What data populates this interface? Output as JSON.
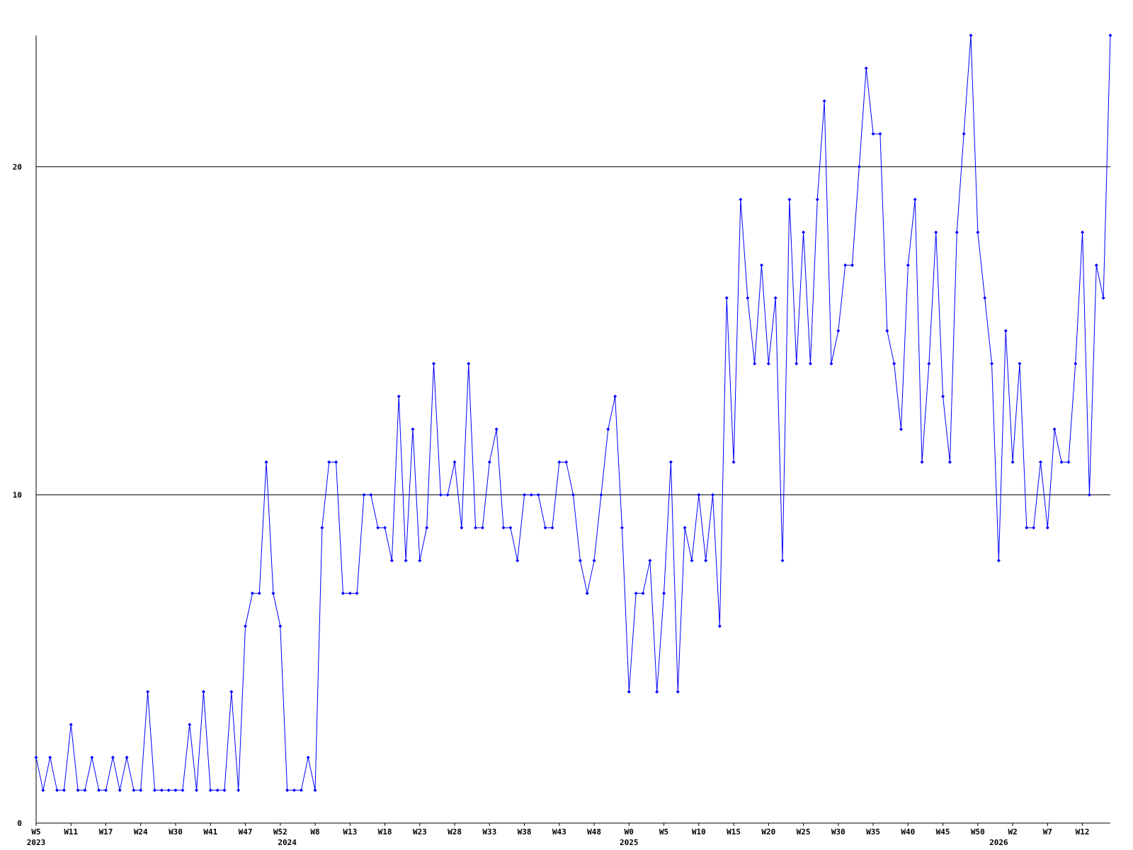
{
  "chart_data": {
    "type": "line",
    "categories": [
      "W5",
      null,
      null,
      null,
      null,
      "W11",
      null,
      null,
      null,
      null,
      "W17",
      null,
      null,
      null,
      null,
      "W24",
      null,
      null,
      null,
      null,
      "W30",
      null,
      null,
      null,
      null,
      "W41",
      null,
      null,
      null,
      null,
      "W47",
      null,
      null,
      null,
      null,
      "W52",
      null,
      null,
      null,
      null,
      "W8",
      null,
      null,
      null,
      null,
      "W13",
      null,
      null,
      null,
      null,
      "W18",
      null,
      null,
      null,
      null,
      "W23",
      null,
      null,
      null,
      null,
      "W28",
      null,
      null,
      null,
      null,
      "W33",
      null,
      null,
      null,
      null,
      "W38",
      null,
      null,
      null,
      null,
      "W43",
      null,
      null,
      null,
      null,
      "W48",
      null,
      null,
      null,
      null,
      "W0",
      null,
      null,
      null,
      null,
      "W5",
      null,
      null,
      null,
      null,
      "W10",
      null,
      null,
      null,
      null,
      "W15",
      null,
      null,
      null,
      null,
      "W20",
      null,
      null,
      null,
      null,
      "W25",
      null,
      null,
      null,
      null,
      "W30",
      null,
      null,
      null,
      null,
      "W35",
      null,
      null,
      null,
      null,
      "W40",
      null,
      null,
      null,
      null,
      "W45",
      null,
      null,
      null,
      null,
      "W50",
      null,
      null,
      null,
      null,
      "W2",
      null,
      null,
      null,
      null,
      "W7",
      null,
      null,
      null,
      null,
      "W12",
      null,
      null,
      null,
      null
    ],
    "year_groups": [
      {
        "label": "2023",
        "start": 0
      },
      {
        "label": "2024",
        "start": 36
      },
      {
        "label": "2025",
        "start": 85
      },
      {
        "label": "2026",
        "start": 138
      }
    ],
    "series": [
      {
        "color": "#0000ff",
        "values": [
          2,
          1,
          2,
          1,
          1,
          3,
          1,
          1,
          2,
          1,
          1,
          2,
          1,
          2,
          1,
          1,
          4,
          1,
          1,
          1,
          1,
          1,
          3,
          1,
          4,
          1,
          1,
          1,
          4,
          1,
          6,
          7,
          7,
          11,
          7,
          6,
          1,
          1,
          1,
          2,
          1,
          9,
          11,
          11,
          7,
          7,
          7,
          10,
          10,
          9,
          9,
          8,
          13,
          8,
          12,
          8,
          9,
          14,
          10,
          10,
          11,
          9,
          14,
          9,
          9,
          11,
          12,
          9,
          9,
          8,
          10,
          10,
          10,
          9,
          9,
          11,
          11,
          10,
          8,
          7,
          8,
          10,
          12,
          13,
          9,
          4,
          7,
          7,
          8,
          4,
          7,
          11,
          4,
          9,
          8,
          10,
          8,
          10,
          6,
          16,
          11,
          19,
          16,
          14,
          17,
          14,
          16,
          8,
          19,
          14,
          18,
          14,
          19,
          22,
          14,
          15,
          17,
          17,
          20,
          23,
          21,
          21,
          15,
          14,
          12,
          17,
          19,
          11,
          14,
          18,
          13,
          11,
          18,
          21,
          24,
          18,
          16,
          14,
          8,
          15,
          11,
          14,
          9,
          9,
          11,
          9,
          12,
          11,
          11,
          14,
          18,
          10,
          17,
          16,
          24
        ]
      }
    ],
    "ylim": [
      0,
      24
    ],
    "yticks": [
      0,
      10,
      20
    ],
    "grid": true
  }
}
